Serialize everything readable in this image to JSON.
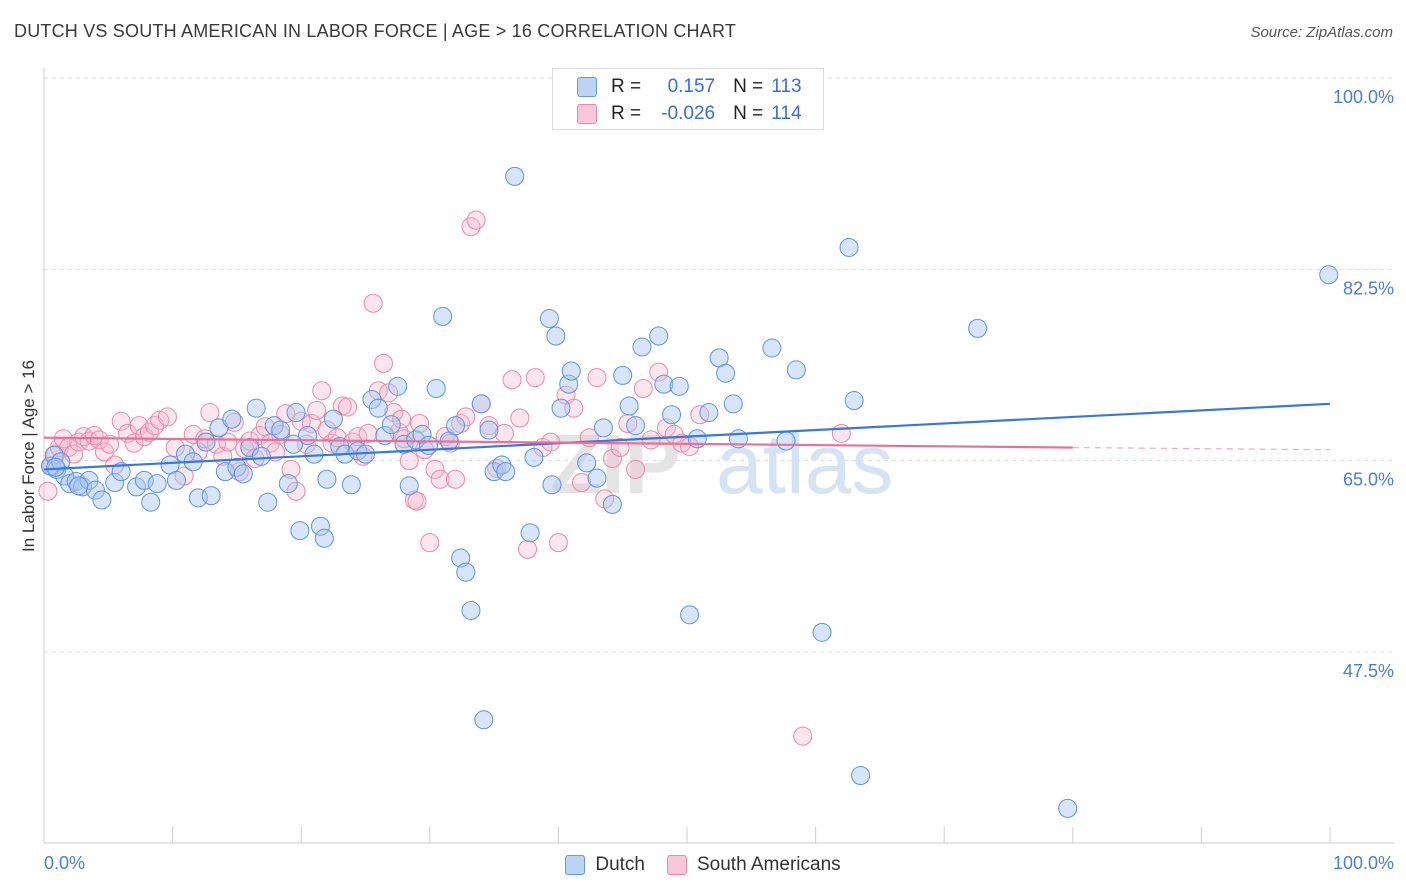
{
  "title": "DUTCH VS SOUTH AMERICAN IN LABOR FORCE | AGE > 16 CORRELATION CHART",
  "source": "Source: ZipAtlas.com",
  "watermark": {
    "part1": "ZIP",
    "part2": "atlas"
  },
  "legend_stats": {
    "r_label": "R =",
    "n_label": "N =",
    "rows": [
      {
        "series": "Dutch",
        "r": "0.157",
        "n": "113",
        "color": "#6699e0"
      },
      {
        "series": "South Americans",
        "r": "-0.026",
        "n": "114",
        "color": "#ee88a8"
      }
    ]
  },
  "bottom_legend": [
    "Dutch",
    "South Americans"
  ],
  "chart_data": {
    "type": "scatter",
    "title": "DUTCH VS SOUTH AMERICAN IN LABOR FORCE | AGE > 16 CORRELATION CHART",
    "xlabel": "",
    "ylabel": "In Labor Force | Age > 16",
    "xlim": [
      0,
      100
    ],
    "ylim": [
      35,
      101
    ],
    "x_tick_labels": [
      "0.0%",
      "100.0%"
    ],
    "y_ticks": [
      47.5,
      65.0,
      82.5,
      100.0
    ],
    "y_tick_labels": [
      "47.5%",
      "65.0%",
      "82.5%",
      "100.0%"
    ],
    "grid": "horizontal dashed",
    "legend_placement": "top-center",
    "colors": {
      "Dutch": "#6699e0",
      "South Americans": "#ee88a8",
      "Dutch_line": "#3a78d8",
      "South_line": "#e8709a"
    },
    "series": [
      {
        "name": "Dutch",
        "r": 0.157,
        "n": 113,
        "trend": {
          "x": [
            0,
            100
          ],
          "y": [
            64.2,
            70.2
          ]
        },
        "points": [
          [
            0.5,
            64.5
          ],
          [
            0.8,
            65.5
          ],
          [
            1.0,
            64.2
          ],
          [
            1.3,
            64.9
          ],
          [
            1.6,
            63.6
          ],
          [
            2.0,
            62.9
          ],
          [
            2.5,
            63.1
          ],
          [
            3.0,
            62.6
          ],
          [
            3.5,
            63.2
          ],
          [
            4.0,
            62.3
          ],
          [
            4.5,
            61.4
          ],
          [
            5.5,
            63.0
          ],
          [
            6.0,
            64.0
          ],
          [
            7.2,
            62.6
          ],
          [
            7.8,
            63.2
          ],
          [
            8.3,
            61.2
          ],
          [
            8.8,
            62.9
          ],
          [
            9.8,
            64.6
          ],
          [
            10.3,
            63.2
          ],
          [
            11.0,
            65.6
          ],
          [
            11.6,
            64.9
          ],
          [
            12.0,
            61.6
          ],
          [
            12.6,
            66.7
          ],
          [
            13.0,
            61.8
          ],
          [
            13.6,
            68.0
          ],
          [
            14.1,
            64.0
          ],
          [
            14.6,
            68.8
          ],
          [
            15.0,
            64.4
          ],
          [
            15.5,
            63.8
          ],
          [
            16.0,
            66.2
          ],
          [
            16.5,
            69.8
          ],
          [
            16.9,
            65.4
          ],
          [
            17.4,
            61.2
          ],
          [
            17.9,
            68.2
          ],
          [
            18.4,
            67.8
          ],
          [
            19.0,
            62.9
          ],
          [
            19.4,
            66.5
          ],
          [
            19.6,
            69.4
          ],
          [
            19.9,
            58.6
          ],
          [
            20.5,
            67.3
          ],
          [
            21.0,
            65.6
          ],
          [
            21.5,
            59.0
          ],
          [
            21.8,
            57.9
          ],
          [
            22.0,
            63.3
          ],
          [
            22.5,
            68.8
          ],
          [
            23.0,
            66.3
          ],
          [
            23.4,
            65.6
          ],
          [
            23.9,
            62.8
          ],
          [
            24.4,
            65.9
          ],
          [
            25.0,
            65.6
          ],
          [
            25.5,
            70.6
          ],
          [
            26.0,
            69.8
          ],
          [
            26.5,
            67.3
          ],
          [
            27.0,
            68.3
          ],
          [
            27.5,
            71.8
          ],
          [
            28.0,
            66.5
          ],
          [
            28.4,
            62.7
          ],
          [
            28.9,
            66.9
          ],
          [
            29.4,
            67.4
          ],
          [
            29.9,
            66.4
          ],
          [
            30.5,
            71.6
          ],
          [
            31.0,
            78.2
          ],
          [
            31.5,
            66.8
          ],
          [
            32.0,
            68.2
          ],
          [
            32.4,
            56.1
          ],
          [
            32.8,
            54.8
          ],
          [
            33.2,
            51.3
          ],
          [
            34.0,
            70.2
          ],
          [
            34.2,
            41.3
          ],
          [
            34.6,
            67.8
          ],
          [
            35.0,
            64.0
          ],
          [
            35.6,
            64.6
          ],
          [
            35.9,
            64.0
          ],
          [
            36.6,
            91.0
          ],
          [
            37.8,
            58.4
          ],
          [
            38.1,
            65.3
          ],
          [
            39.3,
            78.0
          ],
          [
            39.8,
            76.4
          ],
          [
            39.5,
            62.8
          ],
          [
            40.2,
            69.8
          ],
          [
            40.8,
            72.0
          ],
          [
            41.0,
            73.2
          ],
          [
            42.2,
            64.8
          ],
          [
            43.0,
            63.4
          ],
          [
            43.5,
            68.0
          ],
          [
            44.2,
            61.0
          ],
          [
            45.0,
            72.8
          ],
          [
            45.5,
            70.0
          ],
          [
            46.0,
            68.2
          ],
          [
            46.5,
            75.4
          ],
          [
            47.8,
            76.4
          ],
          [
            48.2,
            72.0
          ],
          [
            48.8,
            69.2
          ],
          [
            49.4,
            71.8
          ],
          [
            50.2,
            50.9
          ],
          [
            50.8,
            67.0
          ],
          [
            51.7,
            69.4
          ],
          [
            52.5,
            74.4
          ],
          [
            53.0,
            73.0
          ],
          [
            53.6,
            70.2
          ],
          [
            54.0,
            67.0
          ],
          [
            56.6,
            75.3
          ],
          [
            57.7,
            66.8
          ],
          [
            58.5,
            73.3
          ],
          [
            60.5,
            49.3
          ],
          [
            62.6,
            84.5
          ],
          [
            63.0,
            70.5
          ],
          [
            63.5,
            36.2
          ],
          [
            72.6,
            77.1
          ],
          [
            79.6,
            33.2
          ],
          [
            99.9,
            82.0
          ],
          [
            0.9,
            64.4
          ],
          [
            2.7,
            62.7
          ]
        ]
      },
      {
        "name": "South Americans",
        "r": -0.026,
        "n": 114,
        "trend": {
          "x": [
            0,
            80
          ],
          "y": [
            67.1,
            66.2
          ]
        },
        "dashed_extension": {
          "x": [
            80,
            100
          ],
          "y": [
            66.2,
            66.0
          ]
        },
        "points": [
          [
            0.3,
            62.2
          ],
          [
            0.6,
            64.5
          ],
          [
            0.9,
            65.6
          ],
          [
            1.2,
            66.2
          ],
          [
            1.5,
            67.0
          ],
          [
            1.9,
            66.2
          ],
          [
            2.3,
            65.6
          ],
          [
            2.7,
            66.7
          ],
          [
            3.1,
            67.2
          ],
          [
            3.5,
            66.8
          ],
          [
            3.9,
            67.3
          ],
          [
            4.3,
            66.9
          ],
          [
            4.7,
            65.8
          ],
          [
            5.1,
            66.5
          ],
          [
            5.5,
            64.6
          ],
          [
            6.0,
            68.6
          ],
          [
            6.5,
            67.5
          ],
          [
            7.0,
            66.6
          ],
          [
            7.4,
            68.2
          ],
          [
            7.8,
            67.2
          ],
          [
            8.2,
            67.6
          ],
          [
            8.6,
            68.2
          ],
          [
            9.0,
            68.7
          ],
          [
            9.6,
            69.0
          ],
          [
            10.2,
            66.2
          ],
          [
            10.9,
            63.6
          ],
          [
            11.6,
            67.4
          ],
          [
            12.0,
            65.8
          ],
          [
            12.5,
            67.0
          ],
          [
            12.9,
            69.4
          ],
          [
            13.4,
            66.5
          ],
          [
            13.9,
            65.4
          ],
          [
            14.3,
            66.7
          ],
          [
            14.8,
            68.5
          ],
          [
            15.2,
            64.0
          ],
          [
            15.6,
            66.1
          ],
          [
            16.0,
            66.8
          ],
          [
            16.4,
            65.2
          ],
          [
            16.8,
            67.3
          ],
          [
            17.2,
            68.1
          ],
          [
            17.6,
            66.6
          ],
          [
            18.0,
            65.8
          ],
          [
            18.4,
            67.4
          ],
          [
            18.8,
            69.3
          ],
          [
            19.2,
            64.2
          ],
          [
            19.6,
            62.2
          ],
          [
            20.0,
            68.6
          ],
          [
            20.4,
            66.5
          ],
          [
            20.8,
            68.4
          ],
          [
            21.2,
            69.6
          ],
          [
            21.6,
            71.4
          ],
          [
            22.0,
            67.8
          ],
          [
            22.4,
            66.6
          ],
          [
            22.8,
            67.1
          ],
          [
            23.2,
            70.0
          ],
          [
            23.6,
            69.9
          ],
          [
            24.0,
            66.7
          ],
          [
            24.4,
            67.2
          ],
          [
            24.8,
            65.4
          ],
          [
            25.2,
            67.5
          ],
          [
            25.6,
            79.4
          ],
          [
            26.0,
            71.4
          ],
          [
            26.4,
            73.9
          ],
          [
            26.8,
            71.2
          ],
          [
            27.2,
            69.4
          ],
          [
            27.6,
            67.6
          ],
          [
            28.0,
            67.0
          ],
          [
            28.4,
            65.0
          ],
          [
            28.8,
            61.4
          ],
          [
            29.2,
            68.4
          ],
          [
            29.6,
            66.0
          ],
          [
            30.0,
            57.5
          ],
          [
            30.4,
            64.2
          ],
          [
            30.8,
            63.3
          ],
          [
            31.2,
            67.2
          ],
          [
            31.6,
            66.6
          ],
          [
            32.0,
            63.3
          ],
          [
            32.4,
            68.4
          ],
          [
            32.8,
            69.0
          ],
          [
            33.2,
            86.4
          ],
          [
            33.6,
            87.0
          ],
          [
            34.0,
            70.2
          ],
          [
            34.6,
            68.2
          ],
          [
            35.2,
            64.3
          ],
          [
            35.8,
            67.5
          ],
          [
            36.4,
            72.4
          ],
          [
            37.0,
            68.9
          ],
          [
            37.6,
            56.9
          ],
          [
            38.2,
            72.6
          ],
          [
            38.8,
            66.2
          ],
          [
            39.4,
            66.7
          ],
          [
            40.0,
            57.5
          ],
          [
            40.6,
            71.0
          ],
          [
            41.2,
            69.8
          ],
          [
            41.8,
            63.0
          ],
          [
            42.4,
            67.1
          ],
          [
            43.0,
            72.6
          ],
          [
            43.6,
            61.5
          ],
          [
            44.2,
            65.2
          ],
          [
            44.8,
            66.2
          ],
          [
            45.4,
            68.4
          ],
          [
            46.0,
            64.2
          ],
          [
            46.6,
            71.6
          ],
          [
            47.2,
            66.9
          ],
          [
            47.8,
            73.1
          ],
          [
            48.4,
            68.0
          ],
          [
            49.0,
            67.4
          ],
          [
            49.6,
            66.6
          ],
          [
            50.2,
            66.3
          ],
          [
            51.0,
            69.2
          ],
          [
            59.0,
            39.8
          ],
          [
            62.0,
            67.5
          ],
          [
            27.8,
            68.8
          ],
          [
            29.0,
            61.3
          ]
        ]
      }
    ]
  }
}
